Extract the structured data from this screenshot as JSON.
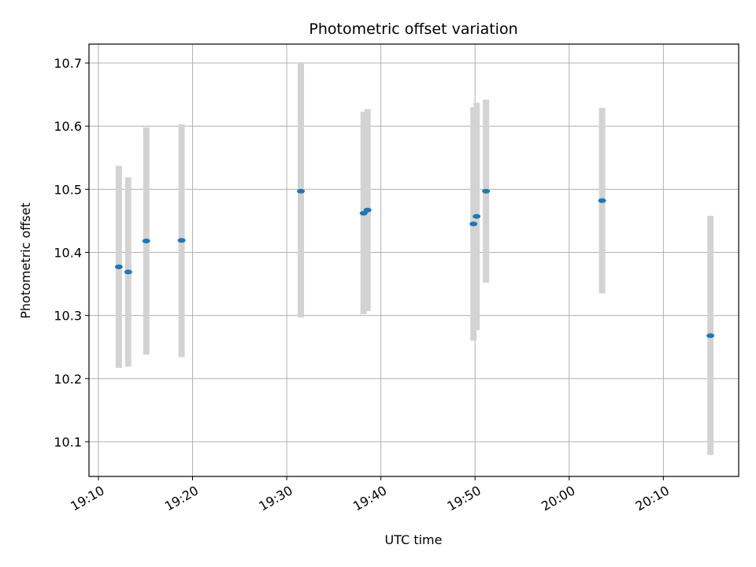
{
  "chart_data": {
    "type": "scatter",
    "title": "Photometric offset variation",
    "xlabel": "UTC time",
    "ylabel": "Photometric offset",
    "grid": true,
    "xlim": [
      "19:09",
      "20:18"
    ],
    "ylim": [
      10.045,
      10.73
    ],
    "x_ticks": [
      "19:10",
      "19:20",
      "19:30",
      "19:40",
      "19:50",
      "20:00",
      "20:10"
    ],
    "y_ticks": [
      10.1,
      10.2,
      10.3,
      10.4,
      10.5,
      10.6,
      10.7
    ],
    "colors": {
      "point": "#1f77b4",
      "errorbar": "#d3d3d3",
      "grid": "#b0b0b0"
    },
    "series": [
      {
        "points": [
          {
            "x": "19:12:10",
            "y": 10.377,
            "ylow": 10.217,
            "yhigh": 10.537
          },
          {
            "x": "19:13:10",
            "y": 10.369,
            "ylow": 10.219,
            "yhigh": 10.519
          },
          {
            "x": "19:15:05",
            "y": 10.418,
            "ylow": 10.238,
            "yhigh": 10.598
          },
          {
            "x": "19:18:50",
            "y": 10.419,
            "ylow": 10.234,
            "yhigh": 10.603
          },
          {
            "x": "19:31:30",
            "y": 10.497,
            "ylow": 10.297,
            "yhigh": 10.7
          },
          {
            "x": "19:38:10",
            "y": 10.462,
            "ylow": 10.302,
            "yhigh": 10.623
          },
          {
            "x": "19:38:35",
            "y": 10.467,
            "ylow": 10.307,
            "yhigh": 10.627
          },
          {
            "x": "19:49:50",
            "y": 10.445,
            "ylow": 10.26,
            "yhigh": 10.63
          },
          {
            "x": "19:50:10",
            "y": 10.457,
            "ylow": 10.277,
            "yhigh": 10.637
          },
          {
            "x": "19:51:10",
            "y": 10.497,
            "ylow": 10.352,
            "yhigh": 10.642
          },
          {
            "x": "20:03:30",
            "y": 10.482,
            "ylow": 10.335,
            "yhigh": 10.629
          },
          {
            "x": "20:15:00",
            "y": 10.268,
            "ylow": 10.079,
            "yhigh": 10.458
          }
        ]
      }
    ]
  }
}
